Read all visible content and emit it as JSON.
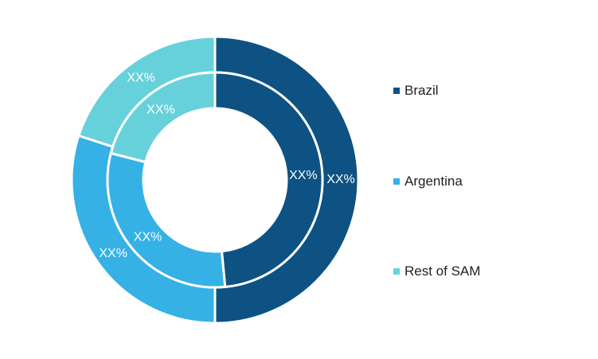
{
  "chart_data": {
    "type": "pie",
    "subtype": "nested-donut",
    "series": [
      {
        "ring": "outer",
        "categories": [
          "Brazil",
          "Argentina",
          "Rest of SAM"
        ],
        "values": [
          50,
          30,
          20
        ],
        "labels": [
          "XX%",
          "XX%",
          "XX%"
        ]
      },
      {
        "ring": "inner",
        "categories": [
          "Brazil",
          "Argentina",
          "Rest of SAM"
        ],
        "values": [
          48.5,
          30.5,
          21
        ],
        "labels": [
          "XX%",
          "XX%",
          "XX%"
        ]
      }
    ],
    "colors": [
      "#0d5282",
      "#35b1e5",
      "#67d1db"
    ],
    "legend": {
      "position": "right",
      "items": [
        {
          "label": "Brazil",
          "color": "#0d5282"
        },
        {
          "label": "Argentina",
          "color": "#35b1e5"
        },
        {
          "label": "Rest of SAM",
          "color": "#67d1db"
        }
      ]
    }
  }
}
